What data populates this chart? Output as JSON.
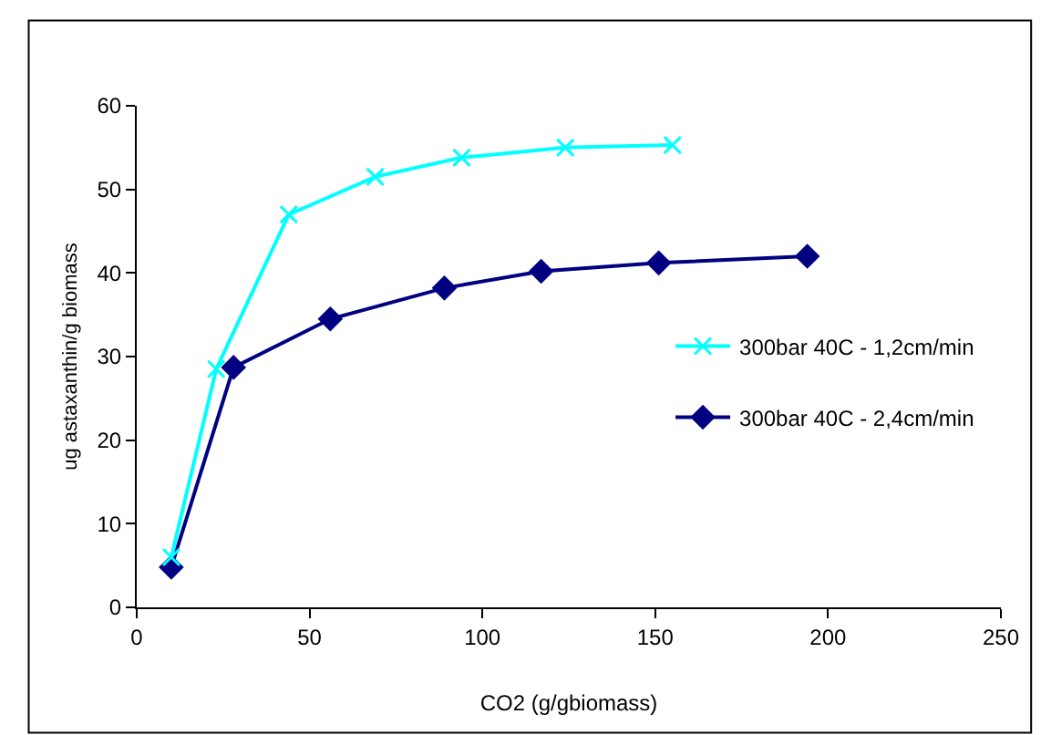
{
  "chart_data": {
    "type": "line",
    "xlabel": "CO2 (g/gbiomass)",
    "ylabel": "ug astaxanthin/g biomass",
    "xlim": [
      0,
      250
    ],
    "xticks": [
      0,
      50,
      100,
      150,
      200,
      250
    ],
    "ylim": [
      0,
      60
    ],
    "yticks": [
      0,
      10,
      20,
      30,
      40,
      50,
      60
    ],
    "legend": "right",
    "series": [
      {
        "name": "300bar 40C - 1,2cm/min",
        "color": "#00ffff",
        "marker": "cross",
        "x": [
          10,
          23,
          44,
          69,
          94,
          124,
          155
        ],
        "values": [
          6,
          28.5,
          47,
          51.5,
          53.8,
          55,
          55.3
        ]
      },
      {
        "name": "300bar 40C - 2,4cm/min",
        "color": "#000080",
        "marker": "diamond",
        "x": [
          10,
          28,
          56,
          89,
          117,
          151,
          194
        ],
        "values": [
          4.8,
          28.7,
          34.5,
          38.2,
          40.2,
          41.2,
          42
        ]
      }
    ]
  }
}
